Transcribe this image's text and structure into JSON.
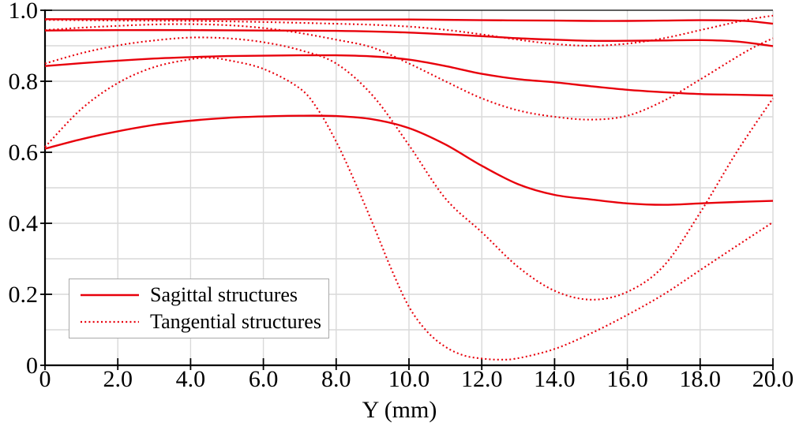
{
  "figure": {
    "background": "#ffffff",
    "xlabel": "Y (mm)"
  },
  "chart_data": {
    "type": "line",
    "title": "",
    "xlabel": "Y (mm)",
    "ylabel": "",
    "xlim": [
      0,
      20
    ],
    "ylim": [
      0,
      1.0
    ],
    "x_ticks": [
      {
        "v": 0,
        "label": "0"
      },
      {
        "v": 2,
        "label": "2.0"
      },
      {
        "v": 4,
        "label": "4.0"
      },
      {
        "v": 6,
        "label": "6.0"
      },
      {
        "v": 8,
        "label": "8.0"
      },
      {
        "v": 10,
        "label": "10.0"
      },
      {
        "v": 12,
        "label": "12.0"
      },
      {
        "v": 14,
        "label": "14.0"
      },
      {
        "v": 16,
        "label": "16.0"
      },
      {
        "v": 18,
        "label": "18.0"
      },
      {
        "v": 20,
        "label": "20.0"
      }
    ],
    "y_ticks": [
      {
        "v": 0.0,
        "label": "0"
      },
      {
        "v": 0.2,
        "label": "0.2"
      },
      {
        "v": 0.4,
        "label": "0.4"
      },
      {
        "v": 0.6,
        "label": "0.6"
      },
      {
        "v": 0.8,
        "label": "0.8"
      },
      {
        "v": 1.0,
        "label": "1.0"
      }
    ],
    "grid": {
      "x_step": 2.0,
      "y_step": 0.1,
      "color": "#d9d9d9"
    },
    "line_color": "#e8000b",
    "legend": {
      "position": "lower-left",
      "items": [
        {
          "label": "Sagittal structures",
          "style": "solid"
        },
        {
          "label": "Tangential structures",
          "style": "dotted"
        }
      ]
    },
    "series": [
      {
        "name": "sagittal-1",
        "group": "sagittal",
        "style": "solid",
        "points": [
          [
            0,
            0.975
          ],
          [
            2,
            0.975
          ],
          [
            4,
            0.975
          ],
          [
            6,
            0.975
          ],
          [
            8,
            0.974
          ],
          [
            10,
            0.974
          ],
          [
            12,
            0.972
          ],
          [
            14,
            0.971
          ],
          [
            15,
            0.97
          ],
          [
            16,
            0.97
          ],
          [
            17,
            0.971
          ],
          [
            18,
            0.972
          ],
          [
            19,
            0.971
          ],
          [
            19.5,
            0.968
          ],
          [
            20,
            0.962
          ]
        ]
      },
      {
        "name": "sagittal-2",
        "group": "sagittal",
        "style": "solid",
        "points": [
          [
            0,
            0.943
          ],
          [
            2,
            0.944
          ],
          [
            4,
            0.944
          ],
          [
            6,
            0.943
          ],
          [
            8,
            0.942
          ],
          [
            10,
            0.937
          ],
          [
            12,
            0.927
          ],
          [
            13,
            0.921
          ],
          [
            14,
            0.917
          ],
          [
            15,
            0.914
          ],
          [
            16,
            0.914
          ],
          [
            17,
            0.915
          ],
          [
            18,
            0.916
          ],
          [
            19,
            0.912
          ],
          [
            20,
            0.899
          ]
        ]
      },
      {
        "name": "sagittal-3",
        "group": "sagittal",
        "style": "solid",
        "points": [
          [
            0,
            0.843
          ],
          [
            1,
            0.851
          ],
          [
            2,
            0.858
          ],
          [
            3,
            0.864
          ],
          [
            4,
            0.868
          ],
          [
            5,
            0.871
          ],
          [
            6,
            0.872
          ],
          [
            7,
            0.873
          ],
          [
            8,
            0.873
          ],
          [
            9,
            0.87
          ],
          [
            10,
            0.861
          ],
          [
            11,
            0.843
          ],
          [
            12,
            0.821
          ],
          [
            13,
            0.806
          ],
          [
            14,
            0.797
          ],
          [
            15,
            0.786
          ],
          [
            16,
            0.776
          ],
          [
            17,
            0.769
          ],
          [
            18,
            0.764
          ],
          [
            19,
            0.762
          ],
          [
            20,
            0.76
          ]
        ]
      },
      {
        "name": "sagittal-4",
        "group": "sagittal",
        "style": "solid",
        "points": [
          [
            0,
            0.61
          ],
          [
            1,
            0.637
          ],
          [
            2,
            0.659
          ],
          [
            3,
            0.677
          ],
          [
            4,
            0.689
          ],
          [
            5,
            0.697
          ],
          [
            6,
            0.701
          ],
          [
            7,
            0.703
          ],
          [
            8,
            0.702
          ],
          [
            9,
            0.693
          ],
          [
            10,
            0.668
          ],
          [
            11,
            0.622
          ],
          [
            12,
            0.562
          ],
          [
            13,
            0.51
          ],
          [
            14,
            0.48
          ],
          [
            15,
            0.467
          ],
          [
            16,
            0.456
          ],
          [
            17,
            0.452
          ],
          [
            18,
            0.456
          ],
          [
            19,
            0.46
          ],
          [
            20,
            0.463
          ]
        ]
      },
      {
        "name": "tangential-1",
        "group": "tangential",
        "style": "dotted",
        "points": [
          [
            0,
            0.973
          ],
          [
            2,
            0.971
          ],
          [
            4,
            0.97
          ],
          [
            6,
            0.967
          ],
          [
            8,
            0.962
          ],
          [
            9,
            0.959
          ],
          [
            10,
            0.954
          ],
          [
            11,
            0.945
          ],
          [
            12,
            0.932
          ],
          [
            13,
            0.917
          ],
          [
            14,
            0.905
          ],
          [
            15,
            0.9
          ],
          [
            16,
            0.906
          ],
          [
            17,
            0.921
          ],
          [
            18,
            0.944
          ],
          [
            19,
            0.967
          ],
          [
            19.5,
            0.977
          ],
          [
            20,
            0.985
          ]
        ]
      },
      {
        "name": "tangential-2",
        "group": "tangential",
        "style": "dotted",
        "points": [
          [
            0,
            0.944
          ],
          [
            1,
            0.951
          ],
          [
            2,
            0.956
          ],
          [
            3,
            0.96
          ],
          [
            4,
            0.961
          ],
          [
            5,
            0.958
          ],
          [
            6,
            0.95
          ],
          [
            7,
            0.936
          ],
          [
            8,
            0.917
          ],
          [
            9,
            0.895
          ],
          [
            10,
            0.85
          ],
          [
            11,
            0.8
          ],
          [
            12,
            0.752
          ],
          [
            13,
            0.718
          ],
          [
            14,
            0.7
          ],
          [
            15,
            0.692
          ],
          [
            16,
            0.703
          ],
          [
            17,
            0.745
          ],
          [
            18,
            0.805
          ],
          [
            19,
            0.868
          ],
          [
            19.5,
            0.897
          ],
          [
            20,
            0.921
          ]
        ]
      },
      {
        "name": "tangential-3",
        "group": "tangential",
        "style": "dotted",
        "points": [
          [
            0,
            0.85
          ],
          [
            1,
            0.879
          ],
          [
            2,
            0.901
          ],
          [
            3,
            0.915
          ],
          [
            4,
            0.923
          ],
          [
            5,
            0.921
          ],
          [
            6,
            0.91
          ],
          [
            7,
            0.888
          ],
          [
            8,
            0.85
          ],
          [
            9,
            0.76
          ],
          [
            10,
            0.62
          ],
          [
            11,
            0.47
          ],
          [
            12,
            0.375
          ],
          [
            13,
            0.277
          ],
          [
            14,
            0.21
          ],
          [
            15,
            0.185
          ],
          [
            16,
            0.207
          ],
          [
            17,
            0.28
          ],
          [
            18,
            0.43
          ],
          [
            19,
            0.6
          ],
          [
            20,
            0.752
          ]
        ]
      },
      {
        "name": "tangential-4",
        "group": "tangential",
        "style": "dotted",
        "points": [
          [
            0,
            0.615
          ],
          [
            1,
            0.722
          ],
          [
            2,
            0.795
          ],
          [
            3,
            0.84
          ],
          [
            4,
            0.862
          ],
          [
            4.5,
            0.866
          ],
          [
            5,
            0.86
          ],
          [
            6,
            0.835
          ],
          [
            7,
            0.78
          ],
          [
            7.5,
            0.72
          ],
          [
            8,
            0.63
          ],
          [
            8.5,
            0.52
          ],
          [
            9,
            0.4
          ],
          [
            9.5,
            0.275
          ],
          [
            10,
            0.165
          ],
          [
            10.5,
            0.095
          ],
          [
            11,
            0.052
          ],
          [
            11.5,
            0.028
          ],
          [
            12,
            0.019
          ],
          [
            12.5,
            0.016
          ],
          [
            13,
            0.02
          ],
          [
            14,
            0.046
          ],
          [
            15,
            0.09
          ],
          [
            16,
            0.142
          ],
          [
            17,
            0.2
          ],
          [
            18,
            0.268
          ],
          [
            19,
            0.336
          ],
          [
            20,
            0.403
          ]
        ]
      }
    ]
  }
}
